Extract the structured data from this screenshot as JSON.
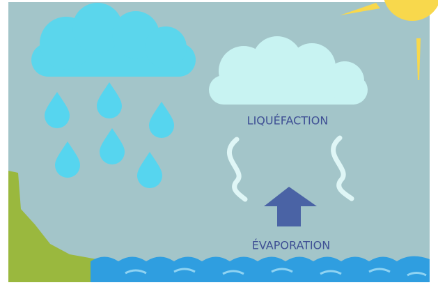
{
  "labels": [
    {
      "text": "LIQUÉFACTION"
    },
    {
      "text": "ÉVAPORATION"
    }
  ]
}
